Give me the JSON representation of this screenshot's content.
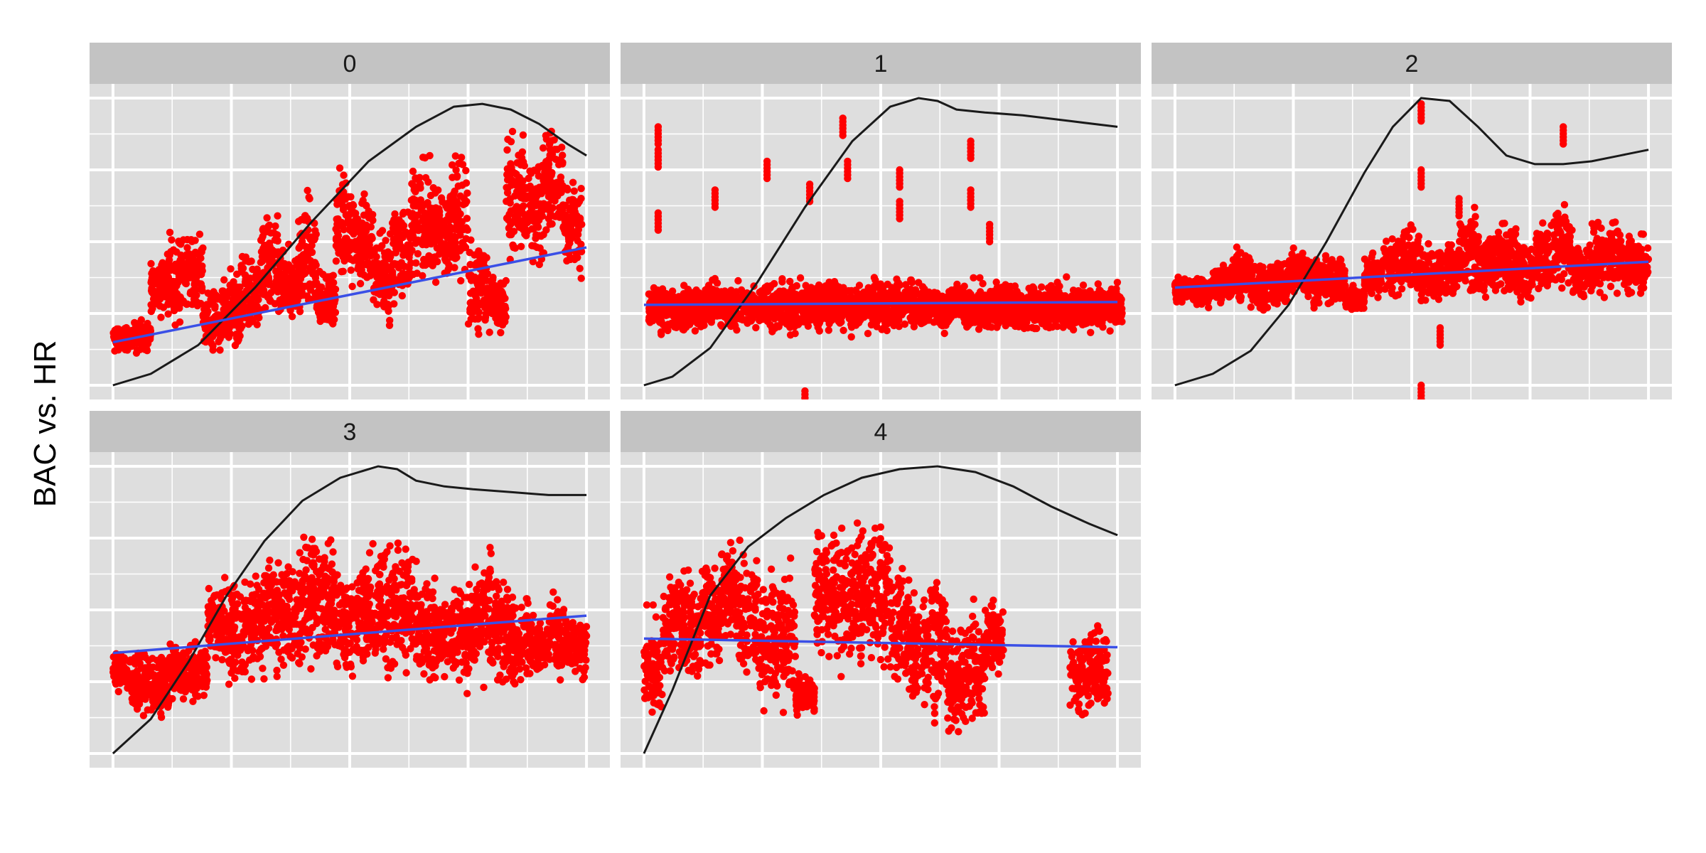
{
  "figure": {
    "ylabel": "BAC vs. HR"
  },
  "colors": {
    "panel_bg": "#dedede",
    "strip_bg": "#c3c3c3",
    "grid": "#ffffff",
    "points": "#ff0000",
    "trend": "#3a4fe6",
    "density": "#1a1a1a"
  },
  "chart_data": [
    {
      "type": "scatter",
      "facet": "0",
      "xlim": [
        0,
        1
      ],
      "ylim": [
        0,
        1
      ],
      "grid": true,
      "points": {
        "centers": [
          [
            0.02,
            0.16
          ],
          [
            0.06,
            0.17
          ],
          [
            0.1,
            0.35
          ],
          [
            0.13,
            0.38
          ],
          [
            0.17,
            0.4
          ],
          [
            0.21,
            0.22
          ],
          [
            0.25,
            0.25
          ],
          [
            0.29,
            0.3
          ],
          [
            0.33,
            0.42
          ],
          [
            0.37,
            0.35
          ],
          [
            0.41,
            0.45
          ],
          [
            0.45,
            0.3
          ],
          [
            0.49,
            0.55
          ],
          [
            0.53,
            0.5
          ],
          [
            0.57,
            0.38
          ],
          [
            0.61,
            0.47
          ],
          [
            0.65,
            0.58
          ],
          [
            0.69,
            0.52
          ],
          [
            0.73,
            0.6
          ],
          [
            0.77,
            0.35
          ],
          [
            0.81,
            0.28
          ],
          [
            0.85,
            0.65
          ],
          [
            0.89,
            0.6
          ],
          [
            0.93,
            0.72
          ],
          [
            0.97,
            0.55
          ]
        ],
        "spreads": [
          0.06,
          0.08,
          0.15,
          0.22,
          0.18,
          0.15,
          0.2,
          0.22,
          0.28,
          0.18,
          0.3,
          0.15,
          0.32,
          0.25,
          0.22,
          0.28,
          0.3,
          0.25,
          0.3,
          0.25,
          0.15,
          0.3,
          0.32,
          0.25,
          0.28
        ]
      },
      "trend": {
        "x": [
          0,
          1
        ],
        "y": [
          0.15,
          0.48
        ]
      },
      "density": {
        "x": [
          0,
          0.08,
          0.18,
          0.3,
          0.42,
          0.54,
          0.64,
          0.72,
          0.78,
          0.84,
          0.9,
          0.96,
          1.0
        ],
        "y": [
          0.0,
          0.04,
          0.14,
          0.34,
          0.57,
          0.78,
          0.9,
          0.97,
          0.98,
          0.96,
          0.91,
          0.84,
          0.8
        ]
      }
    },
    {
      "type": "scatter",
      "facet": "1",
      "xlim": [
        0,
        1
      ],
      "ylim": [
        0,
        1
      ],
      "grid": true,
      "points": {
        "centers": [
          [
            0.03,
            0.27
          ],
          [
            0.07,
            0.26
          ],
          [
            0.11,
            0.27
          ],
          [
            0.15,
            0.28
          ],
          [
            0.19,
            0.27
          ],
          [
            0.23,
            0.27
          ],
          [
            0.27,
            0.28
          ],
          [
            0.31,
            0.27
          ],
          [
            0.35,
            0.28
          ],
          [
            0.39,
            0.28
          ],
          [
            0.43,
            0.27
          ],
          [
            0.47,
            0.28
          ],
          [
            0.51,
            0.27
          ],
          [
            0.55,
            0.28
          ],
          [
            0.59,
            0.28
          ],
          [
            0.63,
            0.27
          ],
          [
            0.67,
            0.28
          ],
          [
            0.71,
            0.27
          ],
          [
            0.75,
            0.28
          ],
          [
            0.79,
            0.27
          ],
          [
            0.83,
            0.28
          ],
          [
            0.87,
            0.27
          ],
          [
            0.91,
            0.28
          ],
          [
            0.95,
            0.27
          ],
          [
            0.99,
            0.27
          ]
        ],
        "spreads": [
          0.12,
          0.12,
          0.11,
          0.12,
          0.12,
          0.11,
          0.12,
          0.13,
          0.12,
          0.12,
          0.12,
          0.12,
          0.13,
          0.12,
          0.12,
          0.12,
          0.12,
          0.12,
          0.12,
          0.12,
          0.12,
          0.12,
          0.12,
          0.12,
          0.11
        ],
        "outliers": [
          [
            0.03,
            0.9
          ],
          [
            0.03,
            0.82
          ],
          [
            0.03,
            0.6
          ],
          [
            0.15,
            0.68
          ],
          [
            0.26,
            0.78
          ],
          [
            0.35,
            0.7
          ],
          [
            0.42,
            0.93
          ],
          [
            0.43,
            0.78
          ],
          [
            0.54,
            0.75
          ],
          [
            0.54,
            0.64
          ],
          [
            0.69,
            0.85
          ],
          [
            0.69,
            0.68
          ],
          [
            0.73,
            0.56
          ],
          [
            0.34,
            -0.02
          ]
        ]
      },
      "trend": {
        "x": [
          0,
          1
        ],
        "y": [
          0.28,
          0.29
        ]
      },
      "density": {
        "x": [
          0,
          0.06,
          0.14,
          0.24,
          0.34,
          0.44,
          0.52,
          0.58,
          0.62,
          0.66,
          0.72,
          0.8,
          0.9,
          1.0
        ],
        "y": [
          0.0,
          0.03,
          0.13,
          0.36,
          0.62,
          0.85,
          0.97,
          1.0,
          0.99,
          0.96,
          0.95,
          0.94,
          0.92,
          0.9
        ]
      }
    },
    {
      "type": "scatter",
      "facet": "2",
      "xlim": [
        0,
        1
      ],
      "ylim": [
        0,
        1
      ],
      "grid": true,
      "points": {
        "centers": [
          [
            0.02,
            0.33
          ],
          [
            0.06,
            0.32
          ],
          [
            0.1,
            0.36
          ],
          [
            0.14,
            0.38
          ],
          [
            0.18,
            0.34
          ],
          [
            0.22,
            0.36
          ],
          [
            0.26,
            0.4
          ],
          [
            0.3,
            0.37
          ],
          [
            0.34,
            0.36
          ],
          [
            0.38,
            0.3
          ],
          [
            0.42,
            0.38
          ],
          [
            0.46,
            0.42
          ],
          [
            0.5,
            0.44
          ],
          [
            0.54,
            0.38
          ],
          [
            0.58,
            0.4
          ],
          [
            0.62,
            0.47
          ],
          [
            0.66,
            0.42
          ],
          [
            0.7,
            0.45
          ],
          [
            0.74,
            0.4
          ],
          [
            0.78,
            0.44
          ],
          [
            0.82,
            0.48
          ],
          [
            0.86,
            0.4
          ],
          [
            0.9,
            0.45
          ],
          [
            0.94,
            0.44
          ],
          [
            0.98,
            0.42
          ]
        ],
        "spreads": [
          0.06,
          0.07,
          0.09,
          0.14,
          0.11,
          0.12,
          0.13,
          0.12,
          0.11,
          0.06,
          0.12,
          0.15,
          0.18,
          0.14,
          0.16,
          0.2,
          0.16,
          0.18,
          0.15,
          0.18,
          0.2,
          0.15,
          0.18,
          0.18,
          0.15
        ],
        "outliers": [
          [
            0.52,
            0.98
          ],
          [
            0.52,
            0.75
          ],
          [
            0.82,
            0.9
          ],
          [
            0.6,
            0.65
          ],
          [
            0.56,
            0.2
          ],
          [
            0.52,
            0.0
          ]
        ]
      },
      "trend": {
        "x": [
          0,
          1
        ],
        "y": [
          0.34,
          0.43
        ]
      },
      "density": {
        "x": [
          0,
          0.08,
          0.16,
          0.24,
          0.32,
          0.4,
          0.46,
          0.52,
          0.58,
          0.64,
          0.7,
          0.76,
          0.82,
          0.88,
          0.94,
          1.0
        ],
        "y": [
          0.0,
          0.04,
          0.12,
          0.28,
          0.5,
          0.74,
          0.9,
          1.0,
          0.99,
          0.9,
          0.8,
          0.77,
          0.77,
          0.78,
          0.8,
          0.82
        ]
      }
    },
    {
      "type": "scatter",
      "facet": "3",
      "xlim": [
        0,
        1
      ],
      "ylim": [
        0,
        1
      ],
      "grid": true,
      "points": {
        "centers": [
          [
            0.02,
            0.28
          ],
          [
            0.06,
            0.25
          ],
          [
            0.1,
            0.25
          ],
          [
            0.14,
            0.28
          ],
          [
            0.18,
            0.28
          ],
          [
            0.22,
            0.45
          ],
          [
            0.26,
            0.42
          ],
          [
            0.3,
            0.45
          ],
          [
            0.34,
            0.5
          ],
          [
            0.38,
            0.48
          ],
          [
            0.42,
            0.55
          ],
          [
            0.46,
            0.5
          ],
          [
            0.5,
            0.45
          ],
          [
            0.54,
            0.48
          ],
          [
            0.58,
            0.52
          ],
          [
            0.62,
            0.5
          ],
          [
            0.66,
            0.45
          ],
          [
            0.7,
            0.4
          ],
          [
            0.74,
            0.42
          ],
          [
            0.78,
            0.48
          ],
          [
            0.82,
            0.42
          ],
          [
            0.86,
            0.38
          ],
          [
            0.9,
            0.38
          ],
          [
            0.94,
            0.42
          ],
          [
            0.98,
            0.36
          ]
        ],
        "spreads": [
          0.1,
          0.15,
          0.18,
          0.14,
          0.14,
          0.22,
          0.25,
          0.3,
          0.3,
          0.3,
          0.35,
          0.32,
          0.28,
          0.32,
          0.33,
          0.3,
          0.28,
          0.18,
          0.25,
          0.3,
          0.28,
          0.22,
          0.16,
          0.22,
          0.16
        ]
      },
      "trend": {
        "x": [
          0,
          1
        ],
        "y": [
          0.35,
          0.48
        ]
      },
      "density": {
        "x": [
          0,
          0.08,
          0.16,
          0.24,
          0.32,
          0.4,
          0.48,
          0.56,
          0.6,
          0.64,
          0.7,
          0.76,
          0.84,
          0.92,
          1.0
        ],
        "y": [
          0.0,
          0.12,
          0.32,
          0.55,
          0.74,
          0.88,
          0.96,
          1.0,
          0.99,
          0.95,
          0.93,
          0.92,
          0.91,
          0.9,
          0.9
        ]
      }
    },
    {
      "type": "scatter",
      "facet": "4",
      "xlim": [
        0,
        1
      ],
      "ylim": [
        0,
        1
      ],
      "grid": true,
      "points": {
        "centers": [
          [
            0.02,
            0.3
          ],
          [
            0.06,
            0.45
          ],
          [
            0.1,
            0.45
          ],
          [
            0.14,
            0.5
          ],
          [
            0.18,
            0.55
          ],
          [
            0.22,
            0.5
          ],
          [
            0.26,
            0.4
          ],
          [
            0.3,
            0.4
          ],
          [
            0.34,
            0.2
          ],
          [
            0.38,
            0.55
          ],
          [
            0.42,
            0.55
          ],
          [
            0.46,
            0.55
          ],
          [
            0.5,
            0.55
          ],
          [
            0.54,
            0.45
          ],
          [
            0.58,
            0.35
          ],
          [
            0.62,
            0.4
          ],
          [
            0.66,
            0.25
          ],
          [
            0.7,
            0.3
          ],
          [
            0.74,
            0.4
          ],
          [
            0.92,
            0.28
          ],
          [
            0.96,
            0.3
          ]
        ],
        "spreads": [
          0.25,
          0.25,
          0.3,
          0.28,
          0.25,
          0.3,
          0.35,
          0.35,
          0.1,
          0.3,
          0.35,
          0.35,
          0.35,
          0.3,
          0.35,
          0.35,
          0.25,
          0.3,
          0.2,
          0.2,
          0.22
        ]
      },
      "trend": {
        "x": [
          0,
          1
        ],
        "y": [
          0.4,
          0.37
        ]
      },
      "density": {
        "x": [
          0,
          0.06,
          0.14,
          0.22,
          0.3,
          0.38,
          0.46,
          0.54,
          0.62,
          0.7,
          0.78,
          0.86,
          0.94,
          1.0
        ],
        "y": [
          0.0,
          0.22,
          0.55,
          0.72,
          0.82,
          0.9,
          0.96,
          0.99,
          1.0,
          0.98,
          0.93,
          0.86,
          0.8,
          0.76
        ]
      }
    }
  ]
}
